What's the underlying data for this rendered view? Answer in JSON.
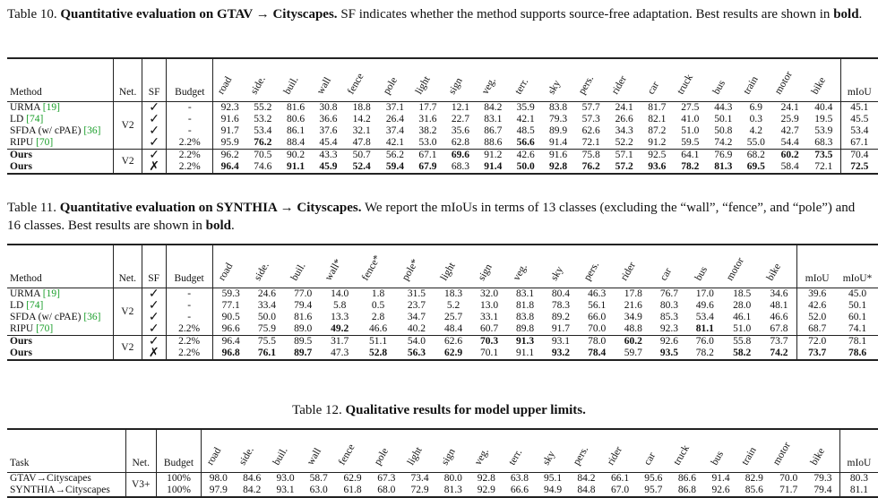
{
  "table10": {
    "caption_prefix": "Table 10.",
    "caption_title": "Quantitative evaluation on GTAV → Cityscapes.",
    "caption_rest": " SF indicates whether the method supports source-free adaptation. Best results are shown in ",
    "caption_bold": "bold",
    "caption_end": ".",
    "header": [
      "Method",
      "Net.",
      "SF",
      "Budget",
      "road",
      "side.",
      "buil.",
      "wall",
      "fence",
      "pole",
      "light",
      "sign",
      "veg.",
      "terr.",
      "sky",
      "pers.",
      "rider",
      "car",
      "truck",
      "bus",
      "train",
      "motor",
      "bike",
      "mIoU"
    ],
    "net_group1": "V2",
    "net_group2": "V2",
    "rows_g1": [
      {
        "method": "URMA ",
        "ref": "[19]",
        "sf": "✓",
        "budget": "-",
        "vals": [
          "92.3",
          "55.2",
          "81.6",
          "30.8",
          "18.8",
          "37.1",
          "17.7",
          "12.1",
          "84.2",
          "35.9",
          "83.8",
          "57.7",
          "24.1",
          "81.7",
          "27.5",
          "44.3",
          "6.9",
          "24.1",
          "40.4",
          "45.1"
        ]
      },
      {
        "method": "LD ",
        "ref": "[74]",
        "sf": "✓",
        "budget": "-",
        "vals": [
          "91.6",
          "53.2",
          "80.6",
          "36.6",
          "14.2",
          "26.4",
          "31.6",
          "22.7",
          "83.1",
          "42.1",
          "79.3",
          "57.3",
          "26.6",
          "82.1",
          "41.0",
          "50.1",
          "0.3",
          "25.9",
          "19.5",
          "45.5"
        ]
      },
      {
        "method": "SFDA (w/ cPAE) ",
        "ref": "[36]",
        "sf": "✓",
        "budget": "-",
        "vals": [
          "91.7",
          "53.4",
          "86.1",
          "37.6",
          "32.1",
          "37.4",
          "38.2",
          "35.6",
          "86.7",
          "48.5",
          "89.9",
          "62.6",
          "34.3",
          "87.2",
          "51.0",
          "50.8",
          "4.2",
          "42.7",
          "53.9",
          "53.4"
        ]
      },
      {
        "method": "RIPU ",
        "ref": "[70]",
        "sf": "✓",
        "budget": "2.2%",
        "vals": [
          "95.9",
          "76.2",
          "88.4",
          "45.4",
          "47.8",
          "42.1",
          "53.0",
          "62.8",
          "88.6",
          "56.6",
          "91.4",
          "72.1",
          "52.2",
          "91.2",
          "59.5",
          "74.2",
          "55.0",
          "54.4",
          "68.3",
          "67.1"
        ],
        "bold": [
          1,
          9
        ]
      }
    ],
    "rows_g2": [
      {
        "method": "Ours",
        "sf": "✓",
        "budget": "2.2%",
        "vals": [
          "96.2",
          "70.5",
          "90.2",
          "43.3",
          "50.7",
          "56.2",
          "67.1",
          "69.6",
          "91.2",
          "42.6",
          "91.6",
          "75.8",
          "57.1",
          "92.5",
          "64.1",
          "76.9",
          "68.2",
          "60.2",
          "73.5",
          "70.4"
        ],
        "bold": [
          7,
          17,
          18
        ]
      },
      {
        "method": "Ours",
        "sf": "✗",
        "budget": "2.2%",
        "vals": [
          "96.4",
          "74.6",
          "91.1",
          "45.9",
          "52.4",
          "59.4",
          "67.9",
          "68.3",
          "91.4",
          "50.0",
          "92.8",
          "76.2",
          "57.2",
          "93.6",
          "78.2",
          "81.3",
          "69.5",
          "58.4",
          "72.1",
          "72.5"
        ],
        "bold": [
          0,
          2,
          3,
          4,
          5,
          6,
          8,
          9,
          10,
          11,
          12,
          13,
          14,
          15,
          16,
          19
        ]
      }
    ]
  },
  "table11": {
    "caption_prefix": "Table 11.",
    "caption_title": "Quantitative evaluation on SYNTHIA → Cityscapes.",
    "caption_rest": " We report the mIoUs in terms of 13 classes (excluding the “wall”, “fence”, and “pole”) and 16 classes. Best results are shown in ",
    "caption_bold": "bold",
    "caption_end": ".",
    "header": [
      "Method",
      "Net.",
      "SF",
      "Budget",
      "road",
      "side.",
      "buil.",
      "wall*",
      "fence*",
      "pole*",
      "light",
      "sign",
      "veg.",
      "sky",
      "pers.",
      "rider",
      "car",
      "bus",
      "motor",
      "bike",
      "mIoU",
      "mIoU*"
    ],
    "net_group1": "V2",
    "net_group2": "V2",
    "rows_g1": [
      {
        "method": "URMA ",
        "ref": "[19]",
        "sf": "✓",
        "budget": "-",
        "vals": [
          "59.3",
          "24.6",
          "77.0",
          "14.0",
          "1.8",
          "31.5",
          "18.3",
          "32.0",
          "83.1",
          "80.4",
          "46.3",
          "17.8",
          "76.7",
          "17.0",
          "18.5",
          "34.6",
          "39.6",
          "45.0"
        ]
      },
      {
        "method": "LD ",
        "ref": "[74]",
        "sf": "✓",
        "budget": "-",
        "vals": [
          "77.1",
          "33.4",
          "79.4",
          "5.8",
          "0.5",
          "23.7",
          "5.2",
          "13.0",
          "81.8",
          "78.3",
          "56.1",
          "21.6",
          "80.3",
          "49.6",
          "28.0",
          "48.1",
          "42.6",
          "50.1"
        ]
      },
      {
        "method": "SFDA (w/ cPAE) ",
        "ref": "[36]",
        "sf": "✓",
        "budget": "-",
        "vals": [
          "90.5",
          "50.0",
          "81.6",
          "13.3",
          "2.8",
          "34.7",
          "25.7",
          "33.1",
          "83.8",
          "89.2",
          "66.0",
          "34.9",
          "85.3",
          "53.4",
          "46.1",
          "46.6",
          "52.0",
          "60.1"
        ]
      },
      {
        "method": "RIPU ",
        "ref": "[70]",
        "sf": "✓",
        "budget": "2.2%",
        "vals": [
          "96.6",
          "75.9",
          "89.0",
          "49.2",
          "46.6",
          "40.2",
          "48.4",
          "60.7",
          "89.8",
          "91.7",
          "70.0",
          "48.8",
          "92.3",
          "81.1",
          "51.0",
          "67.8",
          "68.7",
          "74.1"
        ],
        "bold": [
          3,
          13
        ]
      }
    ],
    "rows_g2": [
      {
        "method": "Ours",
        "sf": "✓",
        "budget": "2.2%",
        "vals": [
          "96.4",
          "75.5",
          "89.5",
          "31.7",
          "51.1",
          "54.0",
          "62.6",
          "70.3",
          "91.3",
          "93.1",
          "78.0",
          "60.2",
          "92.6",
          "76.0",
          "55.8",
          "73.7",
          "72.0",
          "78.1"
        ],
        "bold": [
          7,
          8,
          11
        ]
      },
      {
        "method": "Ours",
        "sf": "✗",
        "budget": "2.2%",
        "vals": [
          "96.8",
          "76.1",
          "89.7",
          "47.3",
          "52.8",
          "56.3",
          "62.9",
          "70.1",
          "91.1",
          "93.2",
          "78.4",
          "59.7",
          "93.5",
          "78.2",
          "58.2",
          "74.2",
          "73.7",
          "78.6"
        ],
        "bold": [
          0,
          1,
          2,
          4,
          5,
          6,
          9,
          10,
          12,
          14,
          15,
          16,
          17
        ]
      }
    ]
  },
  "table12": {
    "caption_prefix": "Table 12.",
    "caption_title": "Qualitative results for model upper limits.",
    "header": [
      "Task",
      "Net.",
      "Budget",
      "road",
      "side.",
      "buil.",
      "wall",
      "fence",
      "pole",
      "light",
      "sign",
      "veg.",
      "terr.",
      "sky",
      "pers.",
      "rider",
      "car",
      "truck",
      "bus",
      "train",
      "motor",
      "bike",
      "mIoU"
    ],
    "net": "V3+",
    "rows": [
      {
        "task": "GTAV→Cityscapes",
        "budget": "100%",
        "vals": [
          "98.0",
          "84.6",
          "93.0",
          "58.7",
          "62.9",
          "67.3",
          "73.4",
          "80.0",
          "92.8",
          "63.8",
          "95.1",
          "84.2",
          "66.1",
          "95.6",
          "86.6",
          "91.4",
          "82.9",
          "70.0",
          "79.3",
          "80.3"
        ]
      },
      {
        "task": "SYNTHIA→Cityscapes",
        "budget": "100%",
        "vals": [
          "97.9",
          "84.2",
          "93.1",
          "63.0",
          "61.8",
          "68.0",
          "72.9",
          "81.3",
          "92.9",
          "66.6",
          "94.9",
          "84.8",
          "67.0",
          "95.7",
          "86.8",
          "92.6",
          "85.6",
          "71.7",
          "79.4",
          "81.1"
        ]
      }
    ]
  }
}
